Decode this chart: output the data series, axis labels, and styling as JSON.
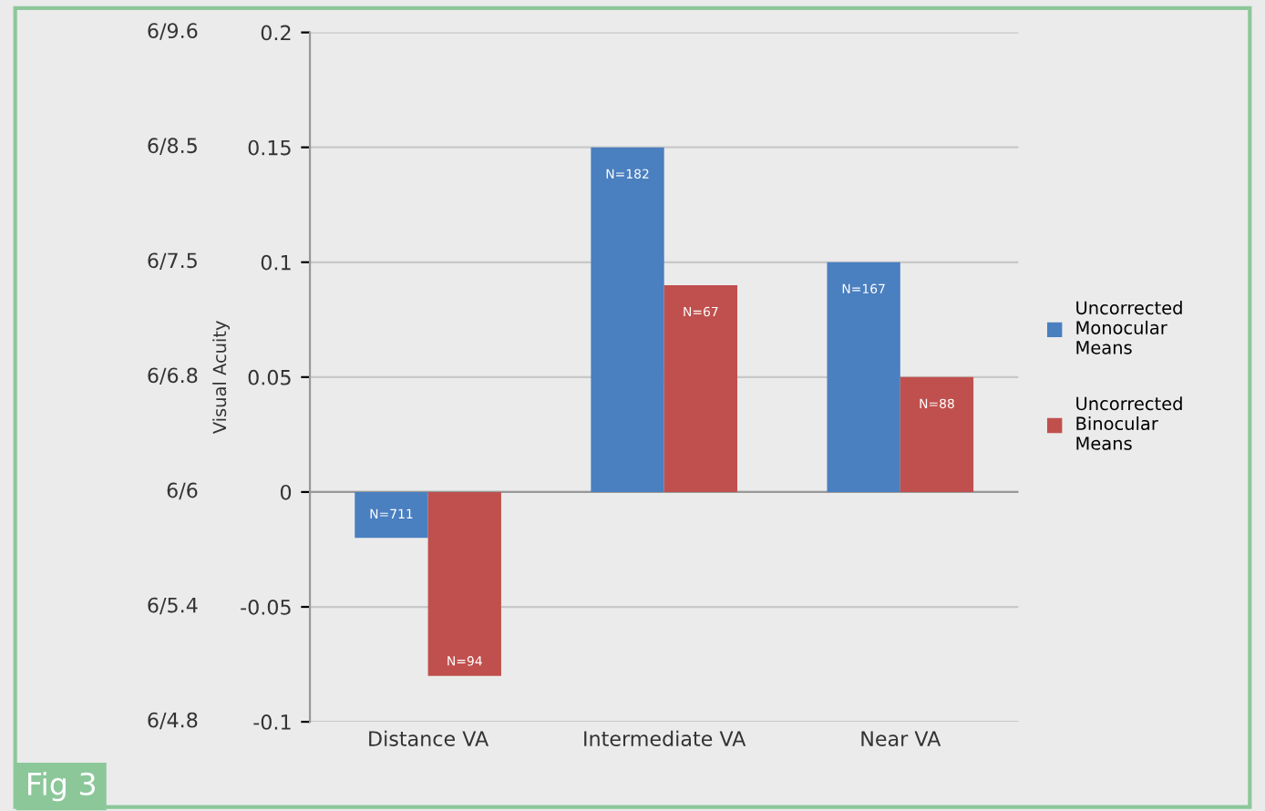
{
  "chart_data": {
    "type": "bar",
    "ylabel": "Visual Acuity",
    "categories": [
      "Distance VA",
      "Intermediate VA",
      "Near VA"
    ],
    "series": [
      {
        "name": "Uncorrected Monocular Means",
        "color": "#4a7fc0",
        "values": [
          -0.02,
          0.15,
          0.1
        ]
      },
      {
        "name": "Uncorrected Binocular Means",
        "color": "#c0504d",
        "values": [
          -0.08,
          0.09,
          0.05
        ]
      }
    ],
    "ylim": [
      -0.1,
      0.2
    ],
    "yticks": [
      -0.1,
      -0.05,
      0,
      0.05,
      0.1,
      0.15,
      0.2
    ],
    "grid": "y",
    "legend": "right",
    "annotations": [
      {
        "text": "N=711",
        "x": "Distance VA",
        "y": -0.02
      },
      {
        "text": "N=94",
        "x": "Distance VA",
        "y": -0.08
      },
      {
        "text": "N=182",
        "x": "Intermediate VA",
        "y": 0.15
      },
      {
        "text": "N=67",
        "x": "Intermediate VA",
        "y": 0.09
      },
      {
        "text": "N=167",
        "x": "Near VA",
        "y": 0.1
      },
      {
        "text": "N=88",
        "x": "Near VA",
        "y": 0.05
      },
      "6/4.8",
      "6/5.4",
      "6/6",
      "6/6.8",
      "6/7.5",
      "6/8.5",
      "6/9.6",
      "Fig 3"
    ]
  }
}
